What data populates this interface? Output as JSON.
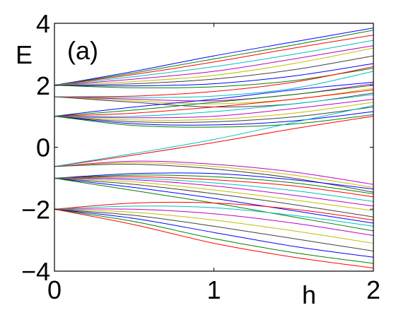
{
  "chart_data": {
    "type": "line",
    "panel_label": "(a)",
    "xlabel": "h",
    "ylabel": "E",
    "xlim": [
      0,
      2
    ],
    "ylim": [
      -4,
      4
    ],
    "xticks": [
      "0",
      "1",
      "2"
    ],
    "yticks": [
      "4",
      "2",
      "0",
      "−2",
      "−4"
    ],
    "xtick_values": [
      0,
      1,
      2
    ],
    "ytick_values": [
      4,
      2,
      0,
      -2,
      -4
    ],
    "grid": false,
    "series_colors": [
      "#0000ff",
      "#008000",
      "#ff0000",
      "#00bfbf",
      "#bf00bf",
      "#bfbf00",
      "#404040"
    ],
    "series": [
      {
        "values": [
          [
            0,
            2.0
          ],
          [
            0.5,
            2.45
          ],
          [
            1,
            2.95
          ],
          [
            1.5,
            3.4
          ],
          [
            2,
            3.85
          ]
        ]
      },
      {
        "values": [
          [
            0,
            2.0
          ],
          [
            0.5,
            2.4
          ],
          [
            1,
            2.85
          ],
          [
            1.5,
            3.3
          ],
          [
            2,
            3.78
          ]
        ]
      },
      {
        "values": [
          [
            0,
            2.0
          ],
          [
            0.5,
            2.35
          ],
          [
            1,
            2.75
          ],
          [
            1.5,
            3.2
          ],
          [
            2,
            3.62
          ]
        ]
      },
      {
        "values": [
          [
            0,
            2.0
          ],
          [
            0.5,
            2.28
          ],
          [
            1,
            2.6
          ],
          [
            1.5,
            3.0
          ],
          [
            2,
            3.45
          ]
        ]
      },
      {
        "values": [
          [
            0,
            2.0
          ],
          [
            0.5,
            2.2
          ],
          [
            1,
            2.45
          ],
          [
            1.5,
            2.85
          ],
          [
            2,
            3.28
          ]
        ]
      },
      {
        "values": [
          [
            0,
            2.0
          ],
          [
            0.5,
            2.12
          ],
          [
            1,
            2.32
          ],
          [
            1.5,
            2.7
          ],
          [
            2,
            3.2
          ]
        ]
      },
      {
        "values": [
          [
            0,
            2.0
          ],
          [
            0.5,
            2.05
          ],
          [
            1,
            2.2
          ],
          [
            1.5,
            2.5
          ],
          [
            2,
            2.95
          ]
        ]
      },
      {
        "values": [
          [
            0,
            2.0
          ],
          [
            0.5,
            1.98
          ],
          [
            1,
            2.05
          ],
          [
            1.5,
            2.3
          ],
          [
            2,
            2.7
          ]
        ]
      },
      {
        "values": [
          [
            0,
            2.0
          ],
          [
            0.5,
            1.92
          ],
          [
            1,
            1.95
          ],
          [
            1.5,
            2.15
          ],
          [
            2,
            2.55
          ]
        ]
      },
      {
        "values": [
          [
            0,
            1.63
          ],
          [
            0.5,
            1.65
          ],
          [
            1,
            1.8
          ],
          [
            1.5,
            2.1
          ],
          [
            2,
            2.6
          ]
        ]
      },
      {
        "values": [
          [
            0,
            1.63
          ],
          [
            0.5,
            1.6
          ],
          [
            1,
            1.65
          ],
          [
            1.5,
            1.9
          ],
          [
            2,
            2.45
          ]
        ]
      },
      {
        "values": [
          [
            0,
            1.63
          ],
          [
            0.5,
            1.55
          ],
          [
            1,
            1.5
          ],
          [
            1.5,
            1.7
          ],
          [
            2,
            2.05
          ]
        ]
      },
      {
        "values": [
          [
            0,
            1.63
          ],
          [
            0.5,
            1.5
          ],
          [
            1,
            1.4
          ],
          [
            1.5,
            1.55
          ],
          [
            2,
            1.9
          ]
        ]
      },
      {
        "values": [
          [
            0,
            1.63
          ],
          [
            0.5,
            1.45
          ],
          [
            1,
            1.3
          ],
          [
            1.5,
            1.4
          ],
          [
            2,
            1.75
          ]
        ]
      },
      {
        "values": [
          [
            0,
            1.0
          ],
          [
            0.5,
            1.3
          ],
          [
            1,
            1.55
          ],
          [
            1.5,
            1.85
          ],
          [
            2,
            2.1
          ]
        ]
      },
      {
        "values": [
          [
            0,
            1.0
          ],
          [
            0.5,
            1.2
          ],
          [
            1,
            1.45
          ],
          [
            1.5,
            1.7
          ],
          [
            2,
            2.0
          ]
        ]
      },
      {
        "values": [
          [
            0,
            1.0
          ],
          [
            0.5,
            1.1
          ],
          [
            1,
            1.3
          ],
          [
            1.5,
            1.55
          ],
          [
            2,
            1.85
          ]
        ]
      },
      {
        "values": [
          [
            0,
            1.0
          ],
          [
            0.5,
            1.0
          ],
          [
            1,
            1.15
          ],
          [
            1.5,
            1.4
          ],
          [
            2,
            1.7
          ]
        ]
      },
      {
        "values": [
          [
            0,
            1.0
          ],
          [
            0.5,
            0.95
          ],
          [
            1,
            1.0
          ],
          [
            1.5,
            1.25
          ],
          [
            2,
            1.55
          ]
        ]
      },
      {
        "values": [
          [
            0,
            1.0
          ],
          [
            0.5,
            0.88
          ],
          [
            1,
            0.9
          ],
          [
            1.5,
            1.1
          ],
          [
            2,
            1.45
          ]
        ]
      },
      {
        "values": [
          [
            0,
            1.0
          ],
          [
            0.5,
            0.82
          ],
          [
            1,
            0.82
          ],
          [
            1.5,
            0.98
          ],
          [
            2,
            1.3
          ]
        ]
      },
      {
        "values": [
          [
            0,
            1.0
          ],
          [
            0.5,
            0.76
          ],
          [
            1,
            0.72
          ],
          [
            1.5,
            0.85
          ],
          [
            2,
            1.15
          ]
        ]
      },
      {
        "values": [
          [
            0,
            1.0
          ],
          [
            0.5,
            0.7
          ],
          [
            1,
            0.65
          ],
          [
            1.5,
            0.75
          ],
          [
            2,
            1.05
          ]
        ]
      },
      {
        "values": [
          [
            0,
            -0.62
          ],
          [
            0.5,
            -0.25
          ],
          [
            1,
            0.15
          ],
          [
            1.5,
            0.6
          ],
          [
            2,
            1.0
          ]
        ]
      },
      {
        "values": [
          [
            0,
            -0.62
          ],
          [
            0.5,
            -0.2
          ],
          [
            1,
            0.25
          ],
          [
            1.5,
            0.8
          ],
          [
            2,
            1.35
          ]
        ]
      },
      {
        "values": [
          [
            0,
            -0.62
          ],
          [
            0.5,
            -0.45
          ],
          [
            1,
            -0.55
          ],
          [
            1.5,
            -0.8
          ],
          [
            2,
            -1.2
          ]
        ]
      },
      {
        "values": [
          [
            0,
            -0.62
          ],
          [
            0.5,
            -0.5
          ],
          [
            1,
            -0.62
          ],
          [
            1.5,
            -0.9
          ],
          [
            2,
            -1.3
          ]
        ]
      },
      {
        "values": [
          [
            0,
            -0.62
          ],
          [
            0.5,
            -0.55
          ],
          [
            1,
            -0.7
          ],
          [
            1.5,
            -1.0
          ],
          [
            2,
            -1.45
          ]
        ]
      },
      {
        "values": [
          [
            0,
            -1.0
          ],
          [
            0.5,
            -0.85
          ],
          [
            1,
            -0.85
          ],
          [
            1.5,
            -1.05
          ],
          [
            2,
            -1.35
          ]
        ]
      },
      {
        "values": [
          [
            0,
            -1.0
          ],
          [
            0.5,
            -0.9
          ],
          [
            1,
            -0.95
          ],
          [
            1.5,
            -1.15
          ],
          [
            2,
            -1.5
          ]
        ]
      },
      {
        "values": [
          [
            0,
            -1.0
          ],
          [
            0.5,
            -0.95
          ],
          [
            1,
            -1.05
          ],
          [
            1.5,
            -1.25
          ],
          [
            2,
            -1.6
          ]
        ]
      },
      {
        "values": [
          [
            0,
            -1.0
          ],
          [
            0.5,
            -1.0
          ],
          [
            1,
            -1.15
          ],
          [
            1.5,
            -1.4
          ],
          [
            2,
            -1.75
          ]
        ]
      },
      {
        "values": [
          [
            0,
            -1.0
          ],
          [
            0.5,
            -1.05
          ],
          [
            1,
            -1.25
          ],
          [
            1.5,
            -1.55
          ],
          [
            2,
            -1.9
          ]
        ]
      },
      {
        "values": [
          [
            0,
            -1.0
          ],
          [
            0.5,
            -1.12
          ],
          [
            1,
            -1.38
          ],
          [
            1.5,
            -1.7
          ],
          [
            2,
            -2.05
          ]
        ]
      },
      {
        "values": [
          [
            0,
            -1.0
          ],
          [
            0.5,
            -1.2
          ],
          [
            1,
            -1.5
          ],
          [
            1.5,
            -1.85
          ],
          [
            2,
            -2.25
          ]
        ]
      },
      {
        "values": [
          [
            0,
            -1.0
          ],
          [
            0.5,
            -1.3
          ],
          [
            1,
            -1.65
          ],
          [
            1.5,
            -2.05
          ],
          [
            2,
            -2.45
          ]
        ]
      },
      {
        "values": [
          [
            0,
            -1.0
          ],
          [
            0.5,
            -1.4
          ],
          [
            1,
            -1.8
          ],
          [
            1.5,
            -2.25
          ],
          [
            2,
            -2.7
          ]
        ]
      },
      {
        "values": [
          [
            0,
            -2.0
          ],
          [
            0.5,
            -1.8
          ],
          [
            1,
            -1.8
          ],
          [
            1.5,
            -2.0
          ],
          [
            2,
            -2.35
          ]
        ]
      },
      {
        "values": [
          [
            0,
            -2.0
          ],
          [
            0.5,
            -1.9
          ],
          [
            1,
            -1.95
          ],
          [
            1.5,
            -2.2
          ],
          [
            2,
            -2.55
          ]
        ]
      },
      {
        "values": [
          [
            0,
            -2.0
          ],
          [
            0.5,
            -2.0
          ],
          [
            1,
            -2.15
          ],
          [
            1.5,
            -2.45
          ],
          [
            2,
            -2.85
          ]
        ]
      },
      {
        "values": [
          [
            0,
            -2.0
          ],
          [
            0.5,
            -2.1
          ],
          [
            1,
            -2.35
          ],
          [
            1.5,
            -2.7
          ],
          [
            2,
            -3.1
          ]
        ]
      },
      {
        "values": [
          [
            0,
            -2.0
          ],
          [
            0.5,
            -2.2
          ],
          [
            1,
            -2.55
          ],
          [
            1.5,
            -2.95
          ],
          [
            2,
            -3.35
          ]
        ]
      },
      {
        "values": [
          [
            0,
            -2.0
          ],
          [
            0.5,
            -2.3
          ],
          [
            1,
            -2.75
          ],
          [
            1.5,
            -3.2
          ],
          [
            2,
            -3.55
          ]
        ]
      },
      {
        "values": [
          [
            0,
            -2.0
          ],
          [
            0.5,
            -2.4
          ],
          [
            1,
            -2.95
          ],
          [
            1.5,
            -3.4
          ],
          [
            2,
            -3.75
          ]
        ]
      },
      {
        "values": [
          [
            0,
            -2.0
          ],
          [
            0.5,
            -2.5
          ],
          [
            1,
            -3.1
          ],
          [
            1.5,
            -3.55
          ],
          [
            2,
            -3.9
          ]
        ]
      }
    ]
  }
}
